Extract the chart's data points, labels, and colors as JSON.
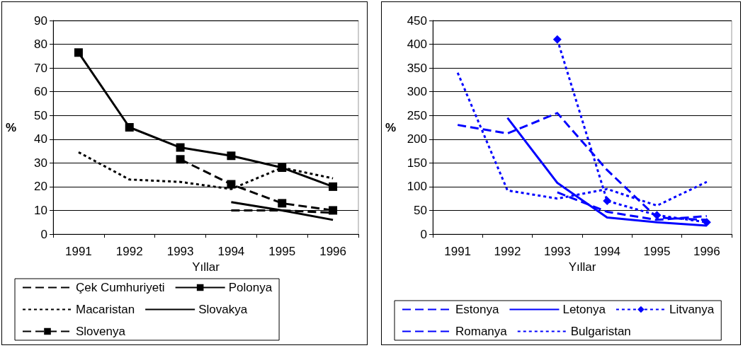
{
  "chart_data": [
    {
      "type": "line",
      "xlabel": "Yıllar",
      "ylabel": "%",
      "categories": [
        "1991",
        "1992",
        "1993",
        "1994",
        "1995",
        "1996"
      ],
      "ylim": [
        0,
        90
      ],
      "yticks": [
        0,
        10,
        20,
        30,
        40,
        50,
        60,
        70,
        80,
        90
      ],
      "grid": "y",
      "legend": "bottom",
      "series": [
        {
          "name": "Çek Cumhuriyeti",
          "color": "#000000",
          "line_style": "dashed",
          "marker": "none",
          "values": [
            null,
            null,
            null,
            10,
            10,
            9
          ]
        },
        {
          "name": "Polonya",
          "color": "#000000",
          "line_style": "solid",
          "marker": "square",
          "values": [
            76.5,
            45,
            36.5,
            33,
            28,
            20
          ]
        },
        {
          "name": "Macaristan",
          "color": "#000000",
          "line_style": "dotted",
          "marker": "none",
          "values": [
            34.5,
            23,
            22,
            19,
            28,
            23.5
          ]
        },
        {
          "name": "Slovakya",
          "color": "#000000",
          "line_style": "solid",
          "marker": "none",
          "values": [
            null,
            null,
            null,
            13.5,
            10,
            6
          ]
        },
        {
          "name": "Slovenya",
          "color": "#000000",
          "line_style": "dashed",
          "marker": "square",
          "values": [
            null,
            null,
            31.5,
            21,
            13,
            10
          ]
        }
      ]
    },
    {
      "type": "line",
      "xlabel": "Yıllar",
      "ylabel": "%",
      "categories": [
        "1991",
        "1992",
        "1993",
        "1994",
        "1995",
        "1996"
      ],
      "ylim": [
        0,
        450
      ],
      "yticks": [
        0,
        50,
        100,
        150,
        200,
        250,
        300,
        350,
        400,
        450
      ],
      "grid": "y",
      "legend": "bottom",
      "series": [
        {
          "name": "Estonya",
          "color": "#0000ff",
          "line_style": "dashed",
          "marker": "none",
          "values": [
            230,
            212,
            255,
            135,
            35,
            30
          ]
        },
        {
          "name": "Letonya",
          "color": "#0000ff",
          "line_style": "solid",
          "marker": "none",
          "values": [
            null,
            245,
            108,
            35,
            25,
            18
          ]
        },
        {
          "name": "Litvanya",
          "color": "#0000ff",
          "line_style": "dotted",
          "marker": "diamond",
          "values": [
            null,
            null,
            410,
            70,
            40,
            25
          ]
        },
        {
          "name": "Romanya",
          "color": "#0000ff",
          "line_style": "dashed",
          "marker": "none",
          "values": [
            null,
            null,
            88,
            47,
            30,
            38
          ]
        },
        {
          "name": "Bulgaristan",
          "color": "#0000ff",
          "line_style": "dotted",
          "marker": "none",
          "values": [
            340,
            92,
            75,
            95,
            60,
            110
          ]
        }
      ]
    }
  ]
}
